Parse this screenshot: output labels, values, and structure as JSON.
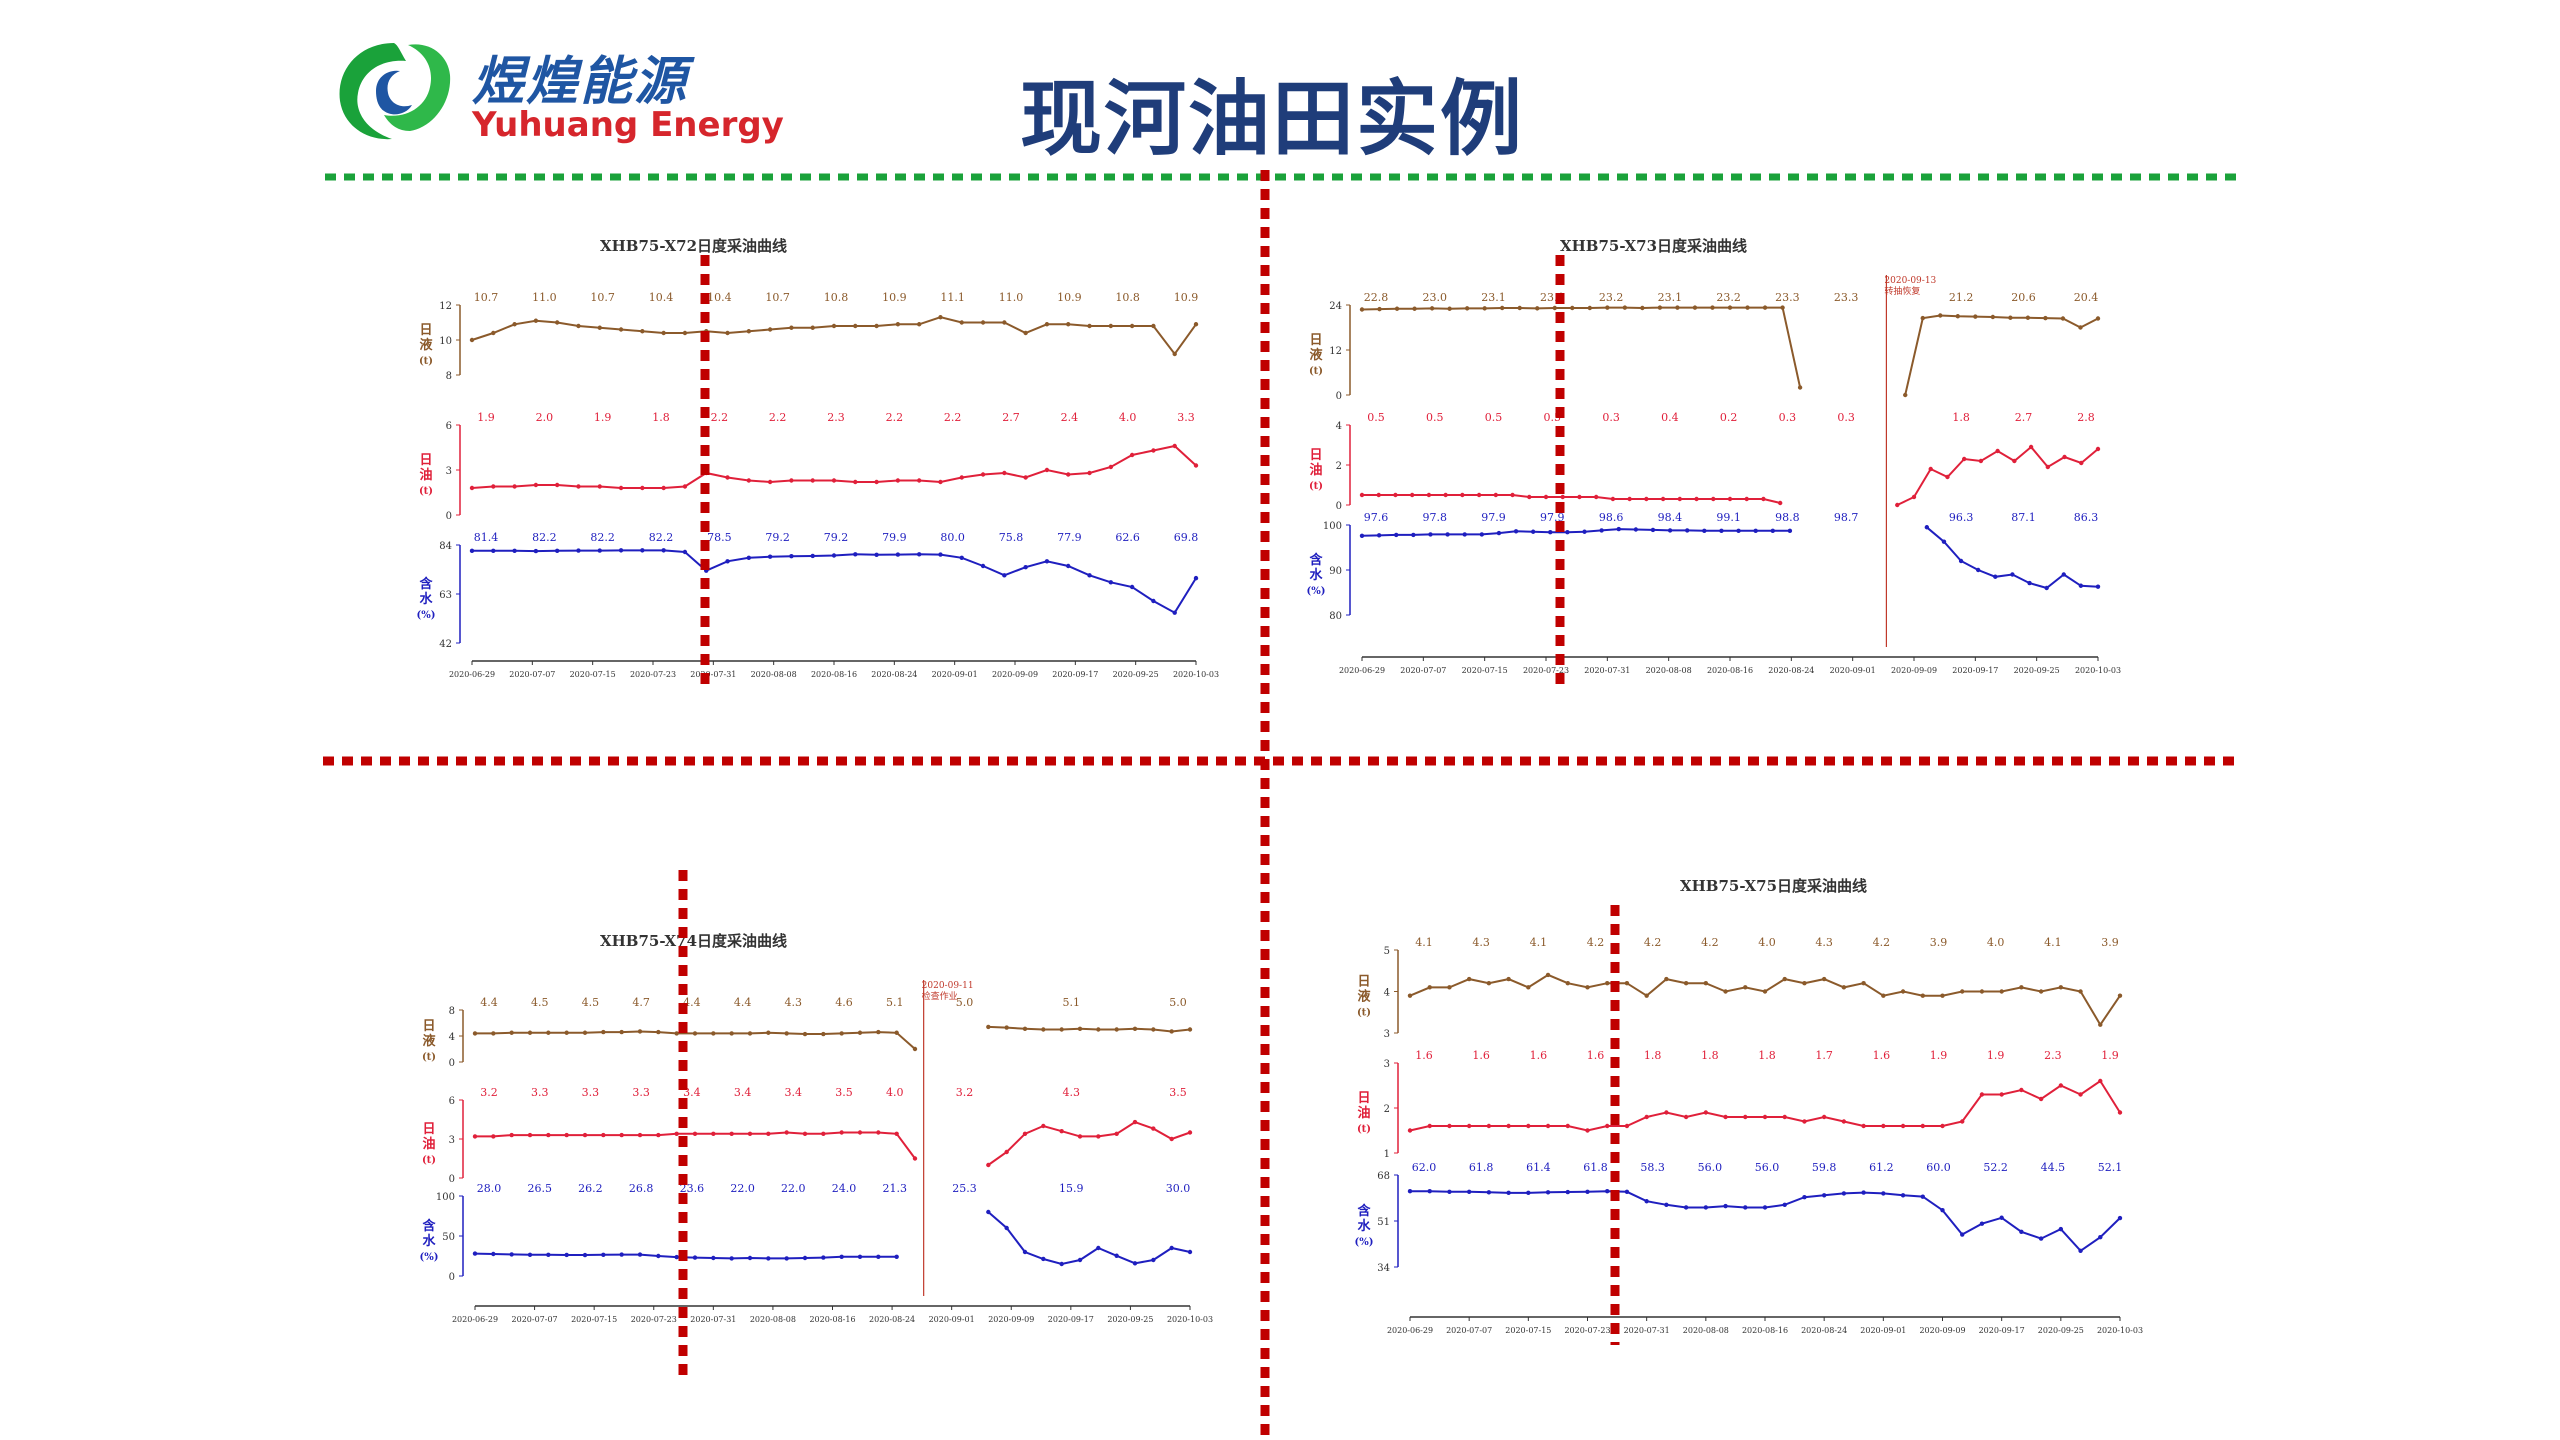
{
  "header": {
    "logo_cn": "煜煌能源",
    "logo_en": "Yuhuang Energy",
    "title": "现河油田实例"
  },
  "colors": {
    "liquid": "#8b5a2b",
    "oil": "#e0203a",
    "water": "#1f1fbf",
    "divider_red": "#c00000",
    "divider_green": "#1aa23a",
    "title": "#1f3d7a"
  },
  "chart_data": [
    {
      "type": "line",
      "title": "XHB75-X72日度采油曲线",
      "x_ticks": [
        "2020-06-29",
        "2020-07-07",
        "2020-07-15",
        "2020-07-23",
        "2020-07-31",
        "2020-08-08",
        "2020-08-16",
        "2020-08-24",
        "2020-09-01",
        "2020-09-09",
        "2020-09-17",
        "2020-09-25",
        "2020-10-03"
      ],
      "gap": null,
      "annotation": "",
      "panels": [
        {
          "name": "日液(t)",
          "ticks": [
            "8",
            "10",
            "12"
          ],
          "ylim": [
            8,
            12
          ],
          "color": "#8b5a2b",
          "labels": [
            "10.7",
            "11.0",
            "10.7",
            "10.4",
            "10.4",
            "10.7",
            "10.8",
            "10.9",
            "11.1",
            "11.0",
            "10.9",
            "10.8",
            "10.9"
          ],
          "values": [
            10.0,
            10.4,
            10.9,
            11.1,
            11.0,
            10.8,
            10.7,
            10.6,
            10.5,
            10.4,
            10.4,
            10.5,
            10.4,
            10.5,
            10.6,
            10.7,
            10.7,
            10.8,
            10.8,
            10.8,
            10.9,
            10.9,
            11.3,
            11.0,
            11.0,
            11.0,
            10.4,
            10.9,
            10.9,
            10.8,
            10.8,
            10.8,
            10.8,
            9.2,
            10.9
          ]
        },
        {
          "name": "日油(t)",
          "ticks": [
            "0",
            "3",
            "6"
          ],
          "ylim": [
            0,
            6
          ],
          "color": "#e0203a",
          "labels": [
            "1.9",
            "2.0",
            "1.9",
            "1.8",
            "2.2",
            "2.2",
            "2.3",
            "2.2",
            "2.2",
            "2.7",
            "2.4",
            "4.0",
            "3.3"
          ],
          "values": [
            1.8,
            1.9,
            1.9,
            2.0,
            2.0,
            1.9,
            1.9,
            1.8,
            1.8,
            1.8,
            1.9,
            2.8,
            2.5,
            2.3,
            2.2,
            2.3,
            2.3,
            2.3,
            2.2,
            2.2,
            2.3,
            2.3,
            2.2,
            2.5,
            2.7,
            2.8,
            2.5,
            3.0,
            2.7,
            2.8,
            3.2,
            4.0,
            4.3,
            4.6,
            3.3
          ]
        },
        {
          "name": "含水(%)",
          "ticks": [
            "42",
            "63",
            "84"
          ],
          "ylim": [
            42,
            84
          ],
          "color": "#1f1fbf",
          "labels": [
            "81.4",
            "82.2",
            "82.2",
            "82.2",
            "78.5",
            "79.2",
            "79.2",
            "79.9",
            "80.0",
            "75.8",
            "77.9",
            "62.6",
            "69.8"
          ],
          "values": [
            81.5,
            81.5,
            81.5,
            81.4,
            81.5,
            81.6,
            81.6,
            81.7,
            81.7,
            81.7,
            81.0,
            73.0,
            77.0,
            78.5,
            79.0,
            79.2,
            79.3,
            79.5,
            80.0,
            79.8,
            79.9,
            80.0,
            79.9,
            78.5,
            75.0,
            71.0,
            74.5,
            77.0,
            75.0,
            71.0,
            68.0,
            66.0,
            60.0,
            55.0,
            69.8
          ]
        }
      ]
    },
    {
      "type": "line",
      "title": "XHB75-X73日度采油曲线",
      "x_ticks": [
        "2020-06-29",
        "2020-07-07",
        "2020-07-15",
        "2020-07-23",
        "2020-07-31",
        "2020-08-08",
        "2020-08-16",
        "2020-08-24",
        "2020-09-01",
        "2020-09-09",
        "2020-09-17",
        "2020-09-25",
        "2020-10-03"
      ],
      "gap": [
        0.685,
        0.795
      ],
      "annotation": "2020-09-13 转抽恢复",
      "panels": [
        {
          "name": "日液(t)",
          "ticks": [
            "0",
            "12",
            "24"
          ],
          "ylim": [
            0,
            24
          ],
          "color": "#8b5a2b",
          "labels": [
            "22.8",
            "23.0",
            "23.1",
            "23.1",
            "23.2",
            "23.1",
            "23.2",
            "23.3",
            "23.3",
            "21.2",
            "20.6",
            "20.4"
          ],
          "values": [
            22.8,
            22.9,
            23.0,
            23.0,
            23.1,
            23.0,
            23.1,
            23.1,
            23.2,
            23.2,
            23.1,
            23.2,
            23.2,
            23.2,
            23.3,
            23.3,
            23.2,
            23.3,
            23.3,
            23.3,
            23.3,
            23.3,
            23.3,
            23.3,
            23.3,
            2.0,
            null,
            null,
            null,
            null,
            null,
            0.0,
            20.5,
            21.2,
            21.0,
            20.9,
            20.8,
            20.6,
            20.6,
            20.5,
            20.4,
            18.0,
            20.4
          ]
        },
        {
          "name": "日油(t)",
          "ticks": [
            "0",
            "2",
            "4"
          ],
          "ylim": [
            0,
            4
          ],
          "color": "#e0203a",
          "labels": [
            "0.5",
            "0.5",
            "0.5",
            "0.5",
            "0.3",
            "0.4",
            "0.2",
            "0.3",
            "0.3",
            "1.8",
            "2.7",
            "2.8"
          ],
          "values": [
            0.5,
            0.5,
            0.5,
            0.5,
            0.5,
            0.5,
            0.5,
            0.5,
            0.5,
            0.5,
            0.4,
            0.4,
            0.4,
            0.4,
            0.4,
            0.3,
            0.3,
            0.3,
            0.3,
            0.3,
            0.3,
            0.3,
            0.3,
            0.3,
            0.3,
            0.1,
            null,
            null,
            null,
            null,
            null,
            null,
            0.0,
            0.4,
            1.8,
            1.4,
            2.3,
            2.2,
            2.7,
            2.2,
            2.9,
            1.9,
            2.4,
            2.1,
            2.8
          ]
        },
        {
          "name": "含水(%)",
          "ticks": [
            "80",
            "90",
            "100"
          ],
          "ylim": [
            80,
            100
          ],
          "color": "#1f1fbf",
          "labels": [
            "97.6",
            "97.8",
            "97.9",
            "97.9",
            "98.6",
            "98.4",
            "99.1",
            "98.8",
            "98.7",
            "96.3",
            "87.1",
            "86.3"
          ],
          "values": [
            97.6,
            97.7,
            97.8,
            97.8,
            97.9,
            97.9,
            97.9,
            97.9,
            98.2,
            98.6,
            98.5,
            98.4,
            98.4,
            98.5,
            98.8,
            99.1,
            99.0,
            98.9,
            98.8,
            98.8,
            98.7,
            98.7,
            98.7,
            98.7,
            98.7,
            98.7,
            null,
            null,
            null,
            null,
            null,
            null,
            null,
            99.5,
            96.3,
            92.0,
            90.0,
            88.5,
            89.0,
            87.1,
            86.0,
            89.0,
            86.5,
            86.3
          ]
        }
      ]
    },
    {
      "type": "line",
      "title": "XHB75-X74日度采油曲线",
      "x_ticks": [
        "2020-06-29",
        "2020-07-07",
        "2020-07-15",
        "2020-07-23",
        "2020-07-31",
        "2020-08-08",
        "2020-08-16",
        "2020-08-24",
        "2020-09-01",
        "2020-09-09",
        "2020-09-17",
        "2020-09-25",
        "2020-10-03"
      ],
      "gap": [
        0.615,
        0.665
      ],
      "annotation": "2020-09-11 检查作业",
      "panels": [
        {
          "name": "日液(t)",
          "ticks": [
            "0",
            "4",
            "8"
          ],
          "ylim": [
            0,
            8
          ],
          "color": "#8b5a2b",
          "labels": [
            "4.4",
            "4.5",
            "4.5",
            "4.7",
            "4.4",
            "4.4",
            "4.3",
            "4.6",
            "5.1",
            "5.0",
            "5.1",
            "5.0"
          ],
          "values": [
            4.4,
            4.4,
            4.5,
            4.5,
            4.5,
            4.5,
            4.5,
            4.6,
            4.6,
            4.7,
            4.6,
            4.4,
            4.4,
            4.4,
            4.4,
            4.4,
            4.5,
            4.4,
            4.3,
            4.3,
            4.4,
            4.5,
            4.6,
            4.5,
            2.0,
            null,
            null,
            null,
            5.4,
            5.3,
            5.1,
            5.0,
            5.0,
            5.1,
            5.0,
            5.0,
            5.1,
            5.0,
            4.7,
            5.0
          ]
        },
        {
          "name": "日油(t)",
          "ticks": [
            "0",
            "3",
            "6"
          ],
          "ylim": [
            0,
            6
          ],
          "color": "#e0203a",
          "labels": [
            "3.2",
            "3.3",
            "3.3",
            "3.3",
            "3.4",
            "3.4",
            "3.4",
            "3.5",
            "4.0",
            "3.2",
            "4.3",
            "3.5"
          ],
          "values": [
            3.2,
            3.2,
            3.3,
            3.3,
            3.3,
            3.3,
            3.3,
            3.3,
            3.3,
            3.3,
            3.3,
            3.4,
            3.4,
            3.4,
            3.4,
            3.4,
            3.4,
            3.5,
            3.4,
            3.4,
            3.5,
            3.5,
            3.5,
            3.4,
            1.5,
            null,
            null,
            null,
            1.0,
            2.0,
            3.4,
            4.0,
            3.6,
            3.2,
            3.2,
            3.4,
            4.3,
            3.8,
            3.0,
            3.5
          ]
        },
        {
          "name": "含水(%)",
          "ticks": [
            "0",
            "50",
            "100"
          ],
          "ylim": [
            0,
            100
          ],
          "color": "#1f1fbf",
          "labels": [
            "28.0",
            "26.5",
            "26.2",
            "26.8",
            "23.6",
            "22.0",
            "22.0",
            "24.0",
            "21.3",
            "25.3",
            "15.9",
            "30.0"
          ],
          "values": [
            28.0,
            27.5,
            27.0,
            26.5,
            26.5,
            26.3,
            26.2,
            26.5,
            26.8,
            26.8,
            25.0,
            23.6,
            23.0,
            22.5,
            22.0,
            22.5,
            22.0,
            22.0,
            22.5,
            23.0,
            24.0,
            24.0,
            24.0,
            24.0,
            null,
            null,
            null,
            null,
            80.0,
            60.0,
            30.0,
            21.3,
            15.0,
            20.0,
            35.0,
            25.3,
            15.9,
            20.0,
            35.0,
            30.0
          ]
        }
      ]
    },
    {
      "type": "line",
      "title": "XHB75-X75日度采油曲线",
      "x_ticks": [
        "2020-06-29",
        "2020-07-07",
        "2020-07-15",
        "2020-07-23",
        "2020-07-31",
        "2020-08-08",
        "2020-08-16",
        "2020-08-24",
        "2020-09-01",
        "2020-09-09",
        "2020-09-17",
        "2020-09-25",
        "2020-10-03"
      ],
      "gap": null,
      "annotation": "",
      "panels": [
        {
          "name": "日液(t)",
          "ticks": [
            "3",
            "4",
            "5"
          ],
          "ylim": [
            3,
            5
          ],
          "color": "#8b5a2b",
          "labels": [
            "4.1",
            "4.3",
            "4.1",
            "4.2",
            "4.2",
            "4.2",
            "4.0",
            "4.3",
            "4.2",
            "3.9",
            "4.0",
            "4.1",
            "3.9"
          ],
          "values": [
            3.9,
            4.1,
            4.1,
            4.3,
            4.2,
            4.3,
            4.1,
            4.4,
            4.2,
            4.1,
            4.2,
            4.2,
            3.9,
            4.3,
            4.2,
            4.2,
            4.0,
            4.1,
            4.0,
            4.3,
            4.2,
            4.3,
            4.1,
            4.2,
            3.9,
            4.0,
            3.9,
            3.9,
            4.0,
            4.0,
            4.0,
            4.1,
            4.0,
            4.1,
            4.0,
            3.2,
            3.9
          ]
        },
        {
          "name": "日油(t)",
          "ticks": [
            "1",
            "2",
            "3"
          ],
          "ylim": [
            1,
            3
          ],
          "color": "#e0203a",
          "labels": [
            "1.6",
            "1.6",
            "1.6",
            "1.6",
            "1.8",
            "1.8",
            "1.8",
            "1.7",
            "1.6",
            "1.9",
            "1.9",
            "2.3",
            "1.9"
          ],
          "values": [
            1.5,
            1.6,
            1.6,
            1.6,
            1.6,
            1.6,
            1.6,
            1.6,
            1.6,
            1.5,
            1.6,
            1.6,
            1.8,
            1.9,
            1.8,
            1.9,
            1.8,
            1.8,
            1.8,
            1.8,
            1.7,
            1.8,
            1.7,
            1.6,
            1.6,
            1.6,
            1.6,
            1.6,
            1.7,
            2.3,
            2.3,
            2.4,
            2.2,
            2.5,
            2.3,
            2.6,
            1.9
          ]
        },
        {
          "name": "含水(%)",
          "ticks": [
            "34",
            "51",
            "68"
          ],
          "ylim": [
            34,
            68
          ],
          "color": "#1f1fbf",
          "labels": [
            "62.0",
            "61.8",
            "61.4",
            "61.8",
            "58.3",
            "56.0",
            "56.0",
            "59.8",
            "61.2",
            "60.0",
            "52.2",
            "44.5",
            "52.1"
          ],
          "values": [
            62.0,
            62.0,
            61.8,
            61.8,
            61.6,
            61.4,
            61.4,
            61.6,
            61.7,
            61.8,
            62.0,
            61.8,
            58.3,
            57.0,
            56.0,
            56.0,
            56.5,
            56.0,
            56.0,
            57.0,
            59.8,
            60.5,
            61.2,
            61.5,
            61.2,
            60.5,
            60.0,
            55.0,
            46.0,
            50.0,
            52.2,
            47.0,
            44.5,
            48.0,
            40.0,
            45.0,
            52.1
          ]
        }
      ]
    }
  ]
}
